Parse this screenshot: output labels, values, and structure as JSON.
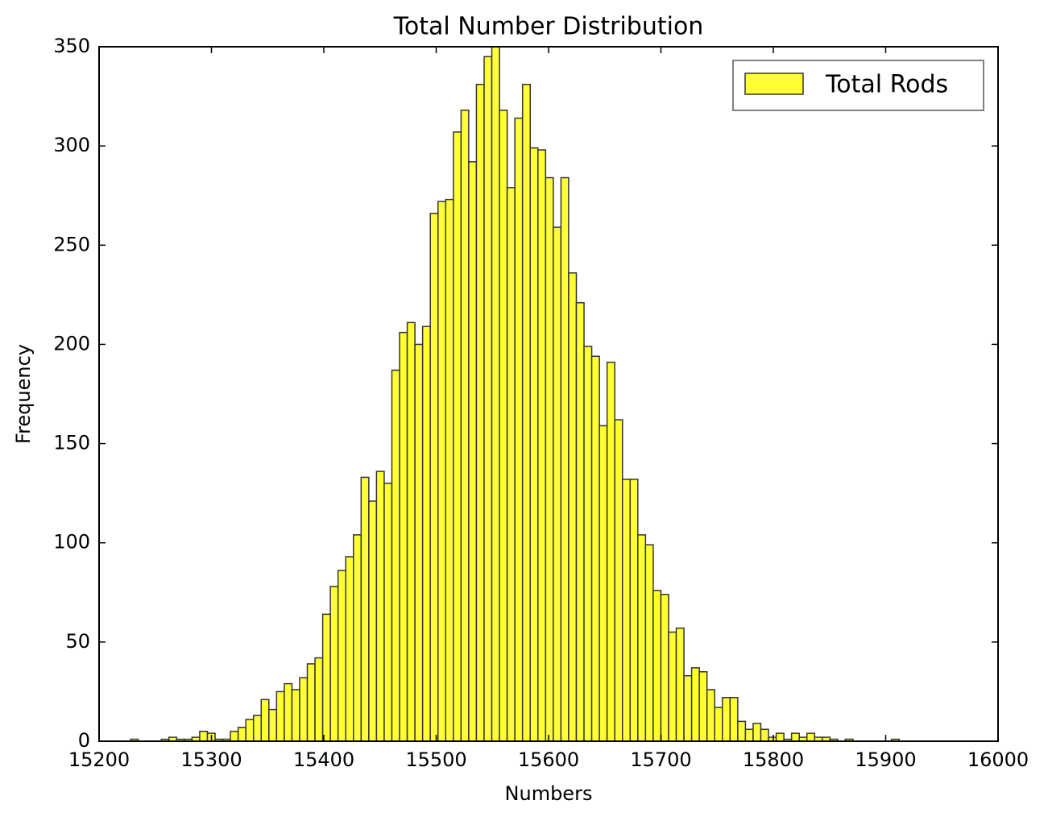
{
  "chart_data": {
    "type": "histogram",
    "title": "Total Number Distribution",
    "xlabel": "Numbers",
    "ylabel": "Frequency",
    "bins": [
      15228,
      15234.84,
      15241.68,
      15248.52,
      15255.36,
      15262.2,
      15269.04,
      15275.88,
      15282.72,
      15289.56,
      15296.4,
      15303.24,
      15310.08,
      15316.92,
      15323.76,
      15330.6,
      15337.44,
      15344.28,
      15351.12,
      15357.96,
      15364.8,
      15371.64,
      15378.48,
      15385.32,
      15392.16,
      15399,
      15405.84,
      15412.68,
      15419.52,
      15426.36,
      15433.2,
      15440.04,
      15446.88,
      15453.72,
      15460.56,
      15467.4,
      15474.24,
      15481.08,
      15487.92,
      15494.76,
      15501.6,
      15508.44,
      15515.28,
      15522.12,
      15528.96,
      15535.8,
      15542.64,
      15549.48,
      15556.32,
      15563.16,
      15570,
      15576.84,
      15583.68,
      15590.52,
      15597.36,
      15604.2,
      15611.04,
      15617.88,
      15624.72,
      15631.56,
      15638.4,
      15645.24,
      15652.08,
      15658.92,
      15665.76,
      15672.6,
      15679.44,
      15686.28,
      15693.12,
      15699.96,
      15706.8,
      15713.64,
      15720.48,
      15727.32,
      15734.16,
      15741,
      15747.84,
      15754.68,
      15761.52,
      15768.36,
      15775.2,
      15782.04,
      15788.88,
      15795.72,
      15802.56,
      15809.4,
      15816.24,
      15823.08,
      15829.92,
      15836.76,
      15843.6,
      15850.44,
      15857.28,
      15864.12,
      15870.96,
      15877.8,
      15884.64,
      15891.48,
      15898.32,
      15905.16,
      15912
    ],
    "series": [
      {
        "name": "Total Rods",
        "color": "#ffff33",
        "values": [
          1,
          0,
          0,
          0,
          1,
          2,
          1,
          1,
          2,
          5,
          4,
          1,
          1,
          5,
          7,
          11,
          13,
          21,
          16,
          25,
          29,
          26,
          32,
          39,
          42,
          64,
          78,
          86,
          93,
          104,
          133,
          121,
          136,
          130,
          187,
          206,
          211,
          200,
          209,
          266,
          272,
          273,
          307,
          318,
          292,
          331,
          345,
          350,
          318,
          279,
          314,
          331,
          299,
          298,
          284,
          259,
          284,
          236,
          221,
          199,
          194,
          159,
          191,
          162,
          132,
          132,
          104,
          99,
          76,
          74,
          55,
          57,
          33,
          37,
          35,
          26,
          17,
          22,
          22,
          10,
          6,
          9,
          6,
          2,
          4,
          1,
          4,
          2,
          4,
          2,
          2,
          1,
          0,
          1,
          0,
          0,
          0,
          0,
          0,
          1
        ]
      }
    ],
    "xlim": [
      15200,
      16000
    ],
    "ylim": [
      0,
      350
    ],
    "xticks": [
      15200,
      15300,
      15400,
      15500,
      15600,
      15700,
      15800,
      15900,
      16000
    ],
    "yticks": [
      0,
      50,
      100,
      150,
      200,
      250,
      300,
      350
    ],
    "legend": "upper right"
  }
}
